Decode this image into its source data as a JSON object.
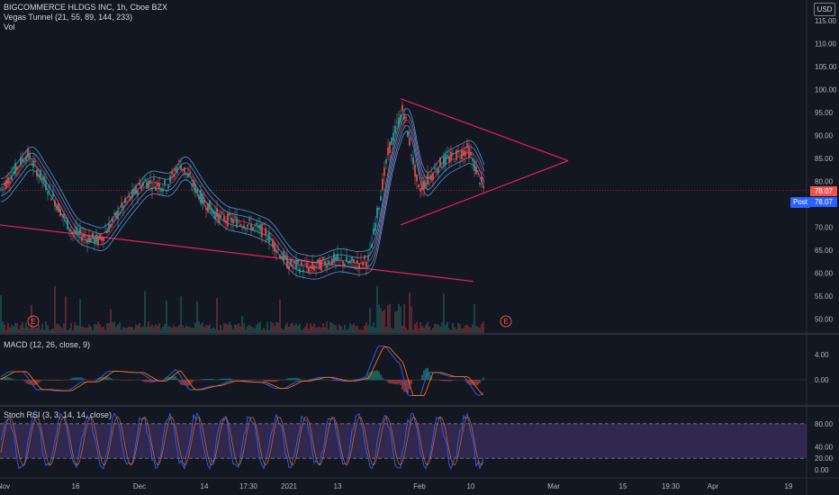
{
  "header": {
    "symbol_line": "BIGCOMMERCE HLDGS INC, 1h, Cboe BZX",
    "indicator_1": "Vegas Tunnel (21, 55, 89, 144, 233)",
    "indicator_2": "Vol",
    "currency": "USD"
  },
  "price_pane": {
    "price_ticks": [
      "115.00",
      "110.00",
      "105.00",
      "100.00",
      "95.00",
      "90.00",
      "85.00",
      "80.00",
      "75.00",
      "70.00",
      "65.00",
      "60.00",
      "55.00",
      "50.00"
    ],
    "last_price": "78.07",
    "post_price": "78.07",
    "post_label": "Post",
    "earnings_marker": "E"
  },
  "macd_pane": {
    "title": "MACD (12, 26, close, 9)",
    "ticks": [
      "4.00",
      "0.00"
    ]
  },
  "stoch_pane": {
    "title": "Stoch RSI (3, 3, 14, 14, close)",
    "ticks": [
      "80.00",
      "40.00",
      "20.00",
      "0.00"
    ]
  },
  "time_axis": {
    "labels": [
      "Nov",
      "16",
      "Dec",
      "14",
      "17:30",
      "2021",
      "13",
      "Feb",
      "10",
      "Mar",
      "15",
      "19:30",
      "Apr",
      "19"
    ]
  },
  "colors": {
    "background": "#131722",
    "up": "#26a69a",
    "down": "#ef5350",
    "trendline": "#e91e63",
    "tunnel": "#64b5f6",
    "stoch_band": "#7e57c2"
  },
  "chart_data": {
    "type": "candlestick",
    "symbol": "BIGCOMMERCE HLDGS INC",
    "interval": "1h",
    "exchange": "Cboe BZX",
    "ylim": [
      47,
      117
    ],
    "close_path": [
      {
        "x": "Nov",
        "y": 78
      },
      {
        "x": "Nov",
        "y": 86
      },
      {
        "x": "Nov",
        "y": 78
      },
      {
        "x": "16",
        "y": 69
      },
      {
        "x": "16",
        "y": 67
      },
      {
        "x": "Dec",
        "y": 74
      },
      {
        "x": "Dec",
        "y": 80
      },
      {
        "x": "Dec",
        "y": 79
      },
      {
        "x": "Dec",
        "y": 84
      },
      {
        "x": "14",
        "y": 76
      },
      {
        "x": "14",
        "y": 72
      },
      {
        "x": "17:30",
        "y": 71
      },
      {
        "x": "17:30",
        "y": 69
      },
      {
        "x": "2021",
        "y": 62
      },
      {
        "x": "2021",
        "y": 61
      },
      {
        "x": "2021",
        "y": 63
      },
      {
        "x": "13",
        "y": 62
      },
      {
        "x": "13",
        "y": 63
      },
      {
        "x": "13",
        "y": 74
      },
      {
        "x": "13",
        "y": 87
      },
      {
        "x": "Feb",
        "y": 96
      },
      {
        "x": "Feb",
        "y": 78
      },
      {
        "x": "Feb",
        "y": 84
      },
      {
        "x": "10",
        "y": 87
      },
      {
        "x": "10",
        "y": 78
      }
    ],
    "last": 78.07
  }
}
